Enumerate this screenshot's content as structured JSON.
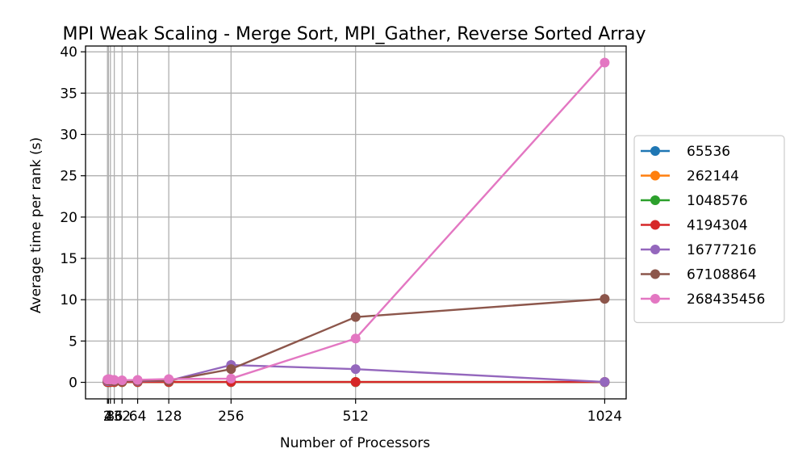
{
  "chart_data": {
    "type": "line",
    "title": "MPI Weak Scaling - Merge Sort, MPI_Gather, Reverse Sorted Array",
    "xlabel": "Number of Processors",
    "ylabel": "Average time per rank (s)",
    "x": [
      2,
      4,
      8,
      16,
      32,
      64,
      128,
      256,
      512,
      1024
    ],
    "x_tick_labels": [
      "2",
      "4",
      "8",
      "16",
      "32",
      "64",
      "128",
      "256",
      "512",
      "1024"
    ],
    "xlim": [
      -43.1,
      1068.1
    ],
    "ylim": [
      -2,
      40.7
    ],
    "y_ticks": [
      0,
      5,
      10,
      15,
      20,
      25,
      30,
      35,
      40
    ],
    "grid": true,
    "legend_placement": "outside-right",
    "marker": "circle",
    "series": [
      {
        "name": "65536",
        "color": "#1f77b4",
        "values": [
          0.02,
          0.02,
          0.02,
          0.02,
          0.02,
          0.02,
          0.02,
          0.02,
          0.02,
          0.02
        ]
      },
      {
        "name": "262144",
        "color": "#ff7f0e",
        "values": [
          0.03,
          0.03,
          0.03,
          0.03,
          0.03,
          0.03,
          0.03,
          0.03,
          0.03,
          0.03
        ]
      },
      {
        "name": "1048576",
        "color": "#2ca02c",
        "values": [
          0.05,
          0.05,
          0.05,
          0.05,
          0.05,
          0.05,
          0.05,
          0.05,
          0.05,
          0.05
        ]
      },
      {
        "name": "4194304",
        "color": "#d62728",
        "values": [
          0.05,
          0.05,
          0.05,
          0.05,
          0.05,
          0.05,
          0.05,
          0.05,
          0.05,
          0.05
        ]
      },
      {
        "name": "16777216",
        "color": "#9467bd",
        "values": [
          0.15,
          0.15,
          0.15,
          0.15,
          0.15,
          0.15,
          0.2,
          2.1,
          1.6,
          0.05
        ]
      },
      {
        "name": "67108864",
        "color": "#8c564b",
        "values": [
          0.25,
          0.25,
          0.2,
          0.15,
          0.1,
          0.2,
          0.2,
          1.6,
          7.9,
          10.1
        ]
      },
      {
        "name": "268435456",
        "color": "#e377c2",
        "values": [
          0.35,
          0.4,
          0.35,
          0.3,
          0.25,
          0.3,
          0.4,
          0.45,
          5.3,
          38.7
        ]
      }
    ]
  }
}
